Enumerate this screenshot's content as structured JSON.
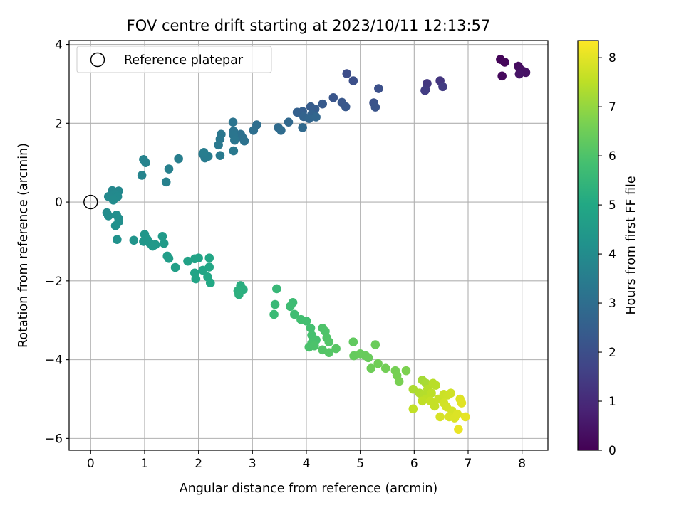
{
  "chart_data": {
    "type": "scatter",
    "title": "FOV centre drift starting at 2023/10/11 12:13:57",
    "xlabel": "Angular distance from reference (arcmin)",
    "ylabel": "Rotation from reference (arcmin)",
    "xlim": [
      -0.4,
      8.48
    ],
    "ylim": [
      -6.3,
      4.1
    ],
    "xticks": [
      0,
      1,
      2,
      3,
      4,
      5,
      6,
      7,
      8
    ],
    "yticks": [
      -6,
      -4,
      -2,
      0,
      2,
      4
    ],
    "grid": true,
    "legend": {
      "position": "upper-left",
      "entries": [
        "Reference platepar"
      ]
    },
    "reference_point": {
      "x": 0,
      "y": 0,
      "label": "Reference platepar"
    },
    "colorbar": {
      "label": "Hours from first FF file",
      "range": [
        0,
        8.35
      ],
      "ticks": [
        0,
        1,
        2,
        3,
        4,
        5,
        6,
        7,
        8
      ],
      "colormap": "viridis"
    },
    "points": [
      {
        "x": 7.6,
        "y": 3.62,
        "hours": 0.1
      },
      {
        "x": 7.68,
        "y": 3.55,
        "hours": 0.15
      },
      {
        "x": 7.63,
        "y": 3.2,
        "hours": 0.2
      },
      {
        "x": 7.93,
        "y": 3.45,
        "hours": 0.25
      },
      {
        "x": 7.96,
        "y": 3.38,
        "hours": 0.3
      },
      {
        "x": 8.02,
        "y": 3.32,
        "hours": 0.35
      },
      {
        "x": 8.07,
        "y": 3.29,
        "hours": 0.4
      },
      {
        "x": 7.95,
        "y": 3.25,
        "hours": 0.45
      },
      {
        "x": 6.48,
        "y": 3.08,
        "hours": 1.3
      },
      {
        "x": 6.24,
        "y": 3.01,
        "hours": 1.35
      },
      {
        "x": 6.21,
        "y": 2.85,
        "hours": 1.4
      },
      {
        "x": 6.53,
        "y": 2.93,
        "hours": 1.45
      },
      {
        "x": 6.2,
        "y": 2.83,
        "hours": 1.5
      },
      {
        "x": 4.75,
        "y": 3.26,
        "hours": 1.95
      },
      {
        "x": 4.87,
        "y": 3.08,
        "hours": 2.0
      },
      {
        "x": 5.34,
        "y": 2.88,
        "hours": 2.05
      },
      {
        "x": 5.25,
        "y": 2.52,
        "hours": 2.1
      },
      {
        "x": 5.28,
        "y": 2.41,
        "hours": 2.15
      },
      {
        "x": 4.5,
        "y": 2.65,
        "hours": 2.2
      },
      {
        "x": 4.66,
        "y": 2.53,
        "hours": 2.25
      },
      {
        "x": 4.73,
        "y": 2.42,
        "hours": 2.3
      },
      {
        "x": 4.3,
        "y": 2.49,
        "hours": 2.35
      },
      {
        "x": 4.08,
        "y": 2.42,
        "hours": 2.4
      },
      {
        "x": 4.16,
        "y": 2.36,
        "hours": 2.45
      },
      {
        "x": 3.93,
        "y": 2.3,
        "hours": 2.5
      },
      {
        "x": 3.83,
        "y": 2.28,
        "hours": 2.55
      },
      {
        "x": 4.1,
        "y": 2.23,
        "hours": 2.6
      },
      {
        "x": 3.95,
        "y": 2.17,
        "hours": 2.65
      },
      {
        "x": 4.05,
        "y": 2.12,
        "hours": 2.7
      },
      {
        "x": 4.18,
        "y": 2.16,
        "hours": 2.75
      },
      {
        "x": 3.67,
        "y": 2.03,
        "hours": 2.8
      },
      {
        "x": 3.93,
        "y": 1.89,
        "hours": 2.85
      },
      {
        "x": 3.48,
        "y": 1.89,
        "hours": 2.9
      },
      {
        "x": 3.53,
        "y": 1.82,
        "hours": 2.95
      },
      {
        "x": 3.08,
        "y": 1.96,
        "hours": 3.0
      },
      {
        "x": 3.02,
        "y": 1.82,
        "hours": 3.05
      },
      {
        "x": 2.78,
        "y": 1.72,
        "hours": 3.1
      },
      {
        "x": 2.82,
        "y": 1.63,
        "hours": 3.12
      },
      {
        "x": 2.85,
        "y": 1.55,
        "hours": 3.15
      },
      {
        "x": 2.64,
        "y": 2.03,
        "hours": 3.2
      },
      {
        "x": 2.65,
        "y": 1.8,
        "hours": 3.22
      },
      {
        "x": 2.65,
        "y": 1.7,
        "hours": 3.25
      },
      {
        "x": 2.67,
        "y": 1.57,
        "hours": 3.28
      },
      {
        "x": 2.42,
        "y": 1.72,
        "hours": 3.3
      },
      {
        "x": 2.4,
        "y": 1.6,
        "hours": 3.32
      },
      {
        "x": 2.37,
        "y": 1.45,
        "hours": 3.35
      },
      {
        "x": 2.65,
        "y": 1.3,
        "hours": 3.38
      },
      {
        "x": 2.4,
        "y": 1.18,
        "hours": 3.4
      },
      {
        "x": 2.08,
        "y": 1.22,
        "hours": 3.42
      },
      {
        "x": 2.12,
        "y": 1.12,
        "hours": 3.45
      },
      {
        "x": 2.18,
        "y": 1.16,
        "hours": 3.48
      },
      {
        "x": 2.1,
        "y": 1.26,
        "hours": 3.5
      },
      {
        "x": 1.63,
        "y": 1.1,
        "hours": 3.55
      },
      {
        "x": 1.45,
        "y": 0.84,
        "hours": 3.6
      },
      {
        "x": 1.4,
        "y": 0.51,
        "hours": 3.65
      },
      {
        "x": 0.98,
        "y": 1.08,
        "hours": 3.7
      },
      {
        "x": 1.02,
        "y": 1.0,
        "hours": 3.72
      },
      {
        "x": 0.95,
        "y": 0.68,
        "hours": 3.75
      },
      {
        "x": 0.4,
        "y": 0.29,
        "hours": 3.85
      },
      {
        "x": 0.52,
        "y": 0.28,
        "hours": 3.87
      },
      {
        "x": 0.44,
        "y": 0.2,
        "hours": 3.9
      },
      {
        "x": 0.33,
        "y": 0.14,
        "hours": 3.92
      },
      {
        "x": 0.5,
        "y": 0.14,
        "hours": 3.95
      },
      {
        "x": 0.42,
        "y": 0.05,
        "hours": 3.97
      },
      {
        "x": 0.3,
        "y": -0.27,
        "hours": 4.0
      },
      {
        "x": 0.33,
        "y": -0.35,
        "hours": 4.05
      },
      {
        "x": 0.48,
        "y": -0.33,
        "hours": 4.08
      },
      {
        "x": 0.52,
        "y": -0.42,
        "hours": 4.1
      },
      {
        "x": 0.52,
        "y": -0.5,
        "hours": 4.12
      },
      {
        "x": 0.46,
        "y": -0.6,
        "hours": 4.15
      },
      {
        "x": 0.49,
        "y": -0.95,
        "hours": 4.2
      },
      {
        "x": 0.8,
        "y": -0.97,
        "hours": 4.3
      },
      {
        "x": 1.0,
        "y": -0.82,
        "hours": 4.35
      },
      {
        "x": 1.05,
        "y": -0.95,
        "hours": 4.38
      },
      {
        "x": 0.98,
        "y": -1.0,
        "hours": 4.4
      },
      {
        "x": 1.1,
        "y": -1.05,
        "hours": 4.42
      },
      {
        "x": 1.15,
        "y": -1.12,
        "hours": 4.45
      },
      {
        "x": 1.2,
        "y": -1.08,
        "hours": 4.47
      },
      {
        "x": 1.33,
        "y": -0.87,
        "hours": 4.5
      },
      {
        "x": 1.36,
        "y": -1.05,
        "hours": 4.55
      },
      {
        "x": 1.42,
        "y": -1.37,
        "hours": 4.6
      },
      {
        "x": 1.45,
        "y": -1.43,
        "hours": 4.62
      },
      {
        "x": 1.57,
        "y": -1.66,
        "hours": 4.7
      },
      {
        "x": 1.8,
        "y": -1.5,
        "hours": 4.75
      },
      {
        "x": 1.93,
        "y": -1.44,
        "hours": 4.8
      },
      {
        "x": 2.0,
        "y": -1.42,
        "hours": 4.82
      },
      {
        "x": 1.93,
        "y": -1.8,
        "hours": 4.85
      },
      {
        "x": 1.95,
        "y": -1.95,
        "hours": 4.88
      },
      {
        "x": 2.08,
        "y": -1.73,
        "hours": 4.9
      },
      {
        "x": 2.2,
        "y": -1.65,
        "hours": 4.92
      },
      {
        "x": 2.2,
        "y": -1.42,
        "hours": 4.95
      },
      {
        "x": 2.17,
        "y": -1.9,
        "hours": 4.97
      },
      {
        "x": 2.22,
        "y": -2.05,
        "hours": 5.0
      },
      {
        "x": 2.78,
        "y": -2.12,
        "hours": 5.2
      },
      {
        "x": 2.83,
        "y": -2.22,
        "hours": 5.22
      },
      {
        "x": 2.73,
        "y": -2.25,
        "hours": 5.25
      },
      {
        "x": 2.75,
        "y": -2.35,
        "hours": 5.28
      },
      {
        "x": 3.45,
        "y": -2.2,
        "hours": 5.55
      },
      {
        "x": 3.42,
        "y": -2.6,
        "hours": 5.6
      },
      {
        "x": 3.4,
        "y": -2.85,
        "hours": 5.65
      },
      {
        "x": 3.75,
        "y": -2.55,
        "hours": 5.7
      },
      {
        "x": 3.7,
        "y": -2.65,
        "hours": 5.72
      },
      {
        "x": 3.78,
        "y": -2.85,
        "hours": 5.75
      },
      {
        "x": 3.9,
        "y": -2.98,
        "hours": 5.8
      },
      {
        "x": 4.0,
        "y": -3.02,
        "hours": 5.82
      },
      {
        "x": 4.08,
        "y": -3.2,
        "hours": 5.85
      },
      {
        "x": 4.1,
        "y": -3.38,
        "hours": 5.88
      },
      {
        "x": 4.18,
        "y": -3.5,
        "hours": 5.9
      },
      {
        "x": 4.1,
        "y": -3.58,
        "hours": 5.92
      },
      {
        "x": 4.05,
        "y": -3.68,
        "hours": 5.95
      },
      {
        "x": 4.15,
        "y": -3.65,
        "hours": 5.97
      },
      {
        "x": 4.3,
        "y": -3.2,
        "hours": 6.0
      },
      {
        "x": 4.35,
        "y": -3.28,
        "hours": 6.02
      },
      {
        "x": 4.38,
        "y": -3.45,
        "hours": 6.05
      },
      {
        "x": 4.42,
        "y": -3.55,
        "hours": 6.07
      },
      {
        "x": 4.3,
        "y": -3.75,
        "hours": 6.1
      },
      {
        "x": 4.42,
        "y": -3.82,
        "hours": 6.12
      },
      {
        "x": 4.55,
        "y": -3.72,
        "hours": 6.15
      },
      {
        "x": 4.87,
        "y": -3.55,
        "hours": 6.3
      },
      {
        "x": 4.88,
        "y": -3.9,
        "hours": 6.35
      },
      {
        "x": 5.0,
        "y": -3.85,
        "hours": 6.38
      },
      {
        "x": 5.1,
        "y": -3.9,
        "hours": 6.4
      },
      {
        "x": 5.15,
        "y": -3.95,
        "hours": 6.42
      },
      {
        "x": 5.28,
        "y": -3.62,
        "hours": 6.45
      },
      {
        "x": 5.2,
        "y": -4.22,
        "hours": 6.5
      },
      {
        "x": 5.33,
        "y": -4.1,
        "hours": 6.52
      },
      {
        "x": 5.47,
        "y": -4.22,
        "hours": 6.55
      },
      {
        "x": 5.65,
        "y": -4.28,
        "hours": 6.6
      },
      {
        "x": 5.68,
        "y": -4.4,
        "hours": 6.62
      },
      {
        "x": 5.72,
        "y": -4.55,
        "hours": 6.65
      },
      {
        "x": 5.85,
        "y": -4.28,
        "hours": 6.7
      },
      {
        "x": 6.15,
        "y": -4.52,
        "hours": 7.2
      },
      {
        "x": 6.22,
        "y": -4.6,
        "hours": 7.25
      },
      {
        "x": 5.98,
        "y": -4.75,
        "hours": 7.3
      },
      {
        "x": 6.1,
        "y": -4.85,
        "hours": 7.35
      },
      {
        "x": 6.18,
        "y": -4.9,
        "hours": 7.4
      },
      {
        "x": 6.25,
        "y": -4.75,
        "hours": 7.42
      },
      {
        "x": 6.35,
        "y": -4.6,
        "hours": 7.45
      },
      {
        "x": 6.4,
        "y": -4.65,
        "hours": 7.47
      },
      {
        "x": 6.32,
        "y": -4.85,
        "hours": 7.5
      },
      {
        "x": 6.22,
        "y": -5.0,
        "hours": 7.52
      },
      {
        "x": 6.15,
        "y": -5.05,
        "hours": 7.55
      },
      {
        "x": 5.98,
        "y": -5.25,
        "hours": 7.57
      },
      {
        "x": 6.3,
        "y": -5.05,
        "hours": 7.6
      },
      {
        "x": 6.38,
        "y": -5.18,
        "hours": 7.62
      },
      {
        "x": 6.45,
        "y": -5.0,
        "hours": 7.65
      },
      {
        "x": 6.55,
        "y": -4.88,
        "hours": 7.7
      },
      {
        "x": 6.62,
        "y": -4.9,
        "hours": 7.72
      },
      {
        "x": 6.68,
        "y": -4.85,
        "hours": 7.75
      },
      {
        "x": 6.55,
        "y": -5.1,
        "hours": 7.78
      },
      {
        "x": 6.6,
        "y": -5.2,
        "hours": 7.8
      },
      {
        "x": 6.7,
        "y": -5.3,
        "hours": 7.82
      },
      {
        "x": 6.48,
        "y": -5.45,
        "hours": 7.85
      },
      {
        "x": 6.65,
        "y": -5.45,
        "hours": 7.88
      },
      {
        "x": 6.75,
        "y": -5.48,
        "hours": 7.9
      },
      {
        "x": 6.8,
        "y": -5.38,
        "hours": 7.92
      },
      {
        "x": 6.85,
        "y": -5.0,
        "hours": 7.95
      },
      {
        "x": 6.88,
        "y": -5.1,
        "hours": 7.98
      },
      {
        "x": 6.95,
        "y": -5.45,
        "hours": 8.05
      },
      {
        "x": 6.82,
        "y": -5.77,
        "hours": 8.1
      }
    ]
  }
}
